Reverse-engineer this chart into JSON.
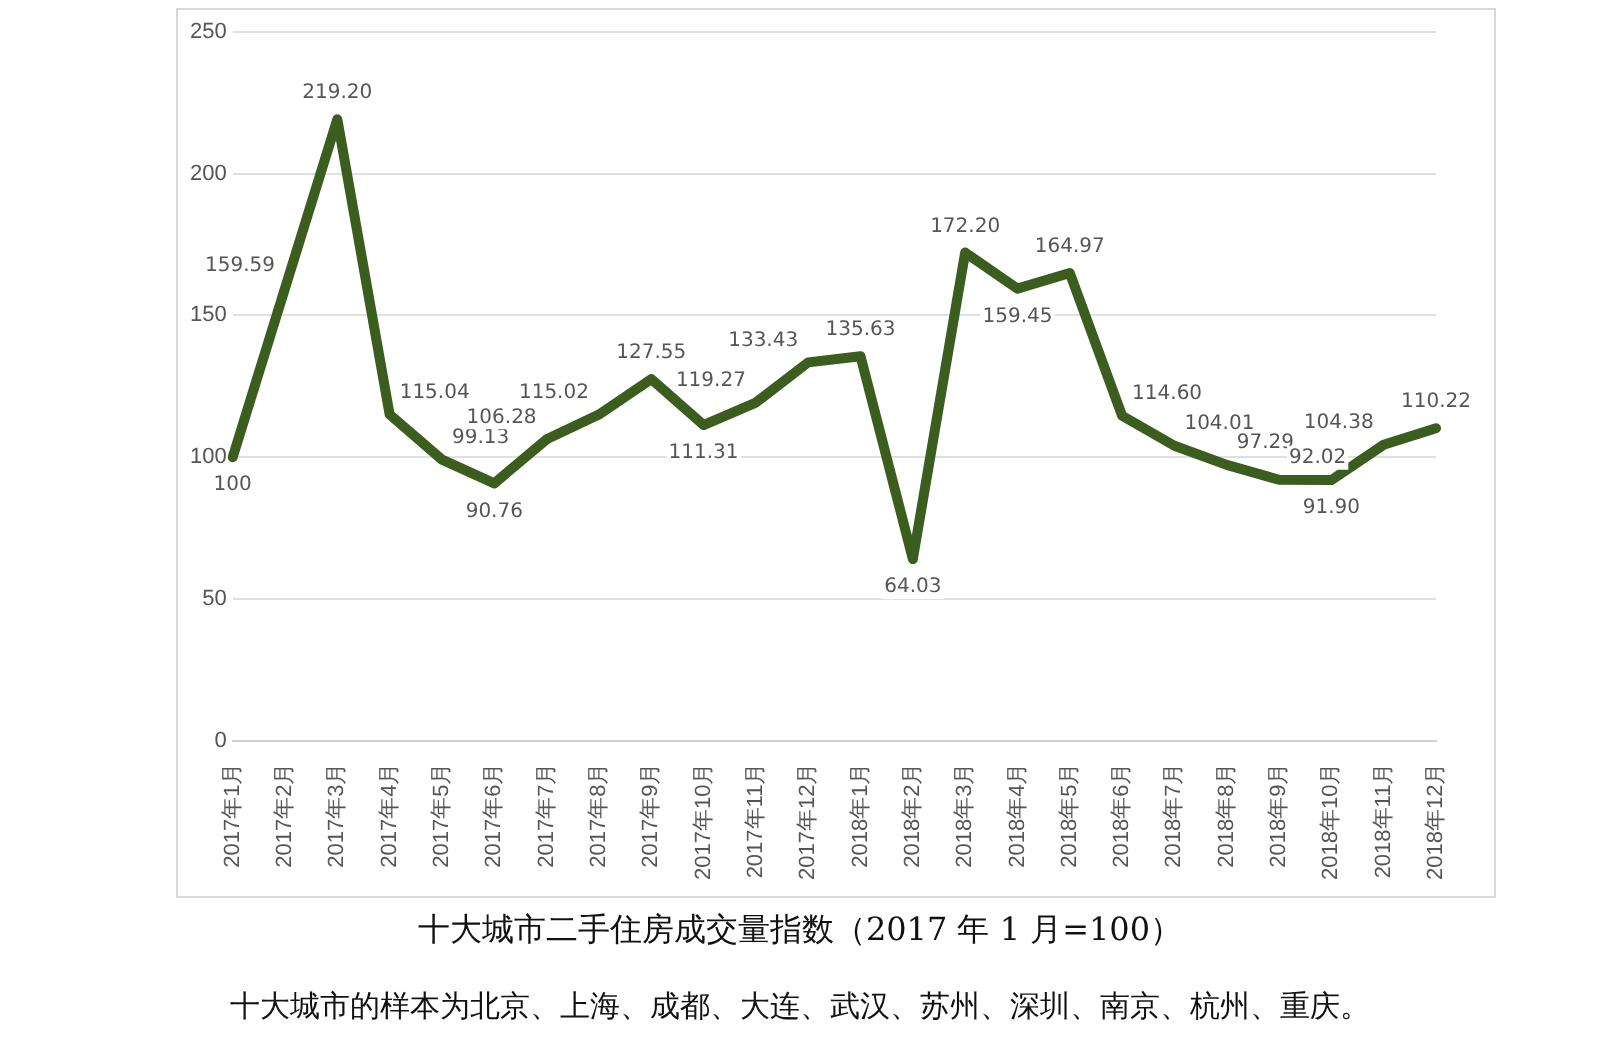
{
  "chart_data": {
    "type": "line",
    "title": "十大城市二手住房成交量指数（2017 年 1 月=100）",
    "annotations": [
      "十大城市的样本为北京、上海、成都、大连、武汉、苏州、深圳、南京、杭州、重庆。"
    ],
    "categories": [
      "2017年1月",
      "2017年2月",
      "2017年3月",
      "2017年4月",
      "2017年5月",
      "2017年6月",
      "2017年7月",
      "2017年8月",
      "2017年9月",
      "2017年10月",
      "2017年11月",
      "2017年12月",
      "2018年1月",
      "2018年2月",
      "2018年3月",
      "2018年4月",
      "2018年5月",
      "2018年6月",
      "2018年7月",
      "2018年8月",
      "2018年9月",
      "2018年10月",
      "2018年11月",
      "2018年12月"
    ],
    "series": [
      {
        "color": "#3b5e1f",
        "values": [
          100,
          159.59,
          219.2,
          115.04,
          99.13,
          90.76,
          106.28,
          115.02,
          127.55,
          111.31,
          119.27,
          133.43,
          135.63,
          64.03,
          172.2,
          159.45,
          164.97,
          114.6,
          104.01,
          97.29,
          92.02,
          91.9,
          104.38,
          110.22
        ],
        "value_labels": [
          "100",
          "159.59",
          "219.20",
          "115.04",
          "99.13",
          "90.76",
          "106.28",
          "115.02",
          "127.55",
          "111.31",
          "119.27",
          "133.43",
          "135.63",
          "64.03",
          "172.20",
          "159.45",
          "164.97",
          "114.60",
          "104.01",
          "97.29",
          "92.02",
          "91.90",
          "104.38",
          "110.22"
        ]
      }
    ],
    "ylim": [
      0,
      250
    ],
    "yticks": [
      0,
      50,
      100,
      150,
      200,
      250
    ],
    "grid": "y",
    "legend": false,
    "marker": "none",
    "line_style": "solid"
  }
}
